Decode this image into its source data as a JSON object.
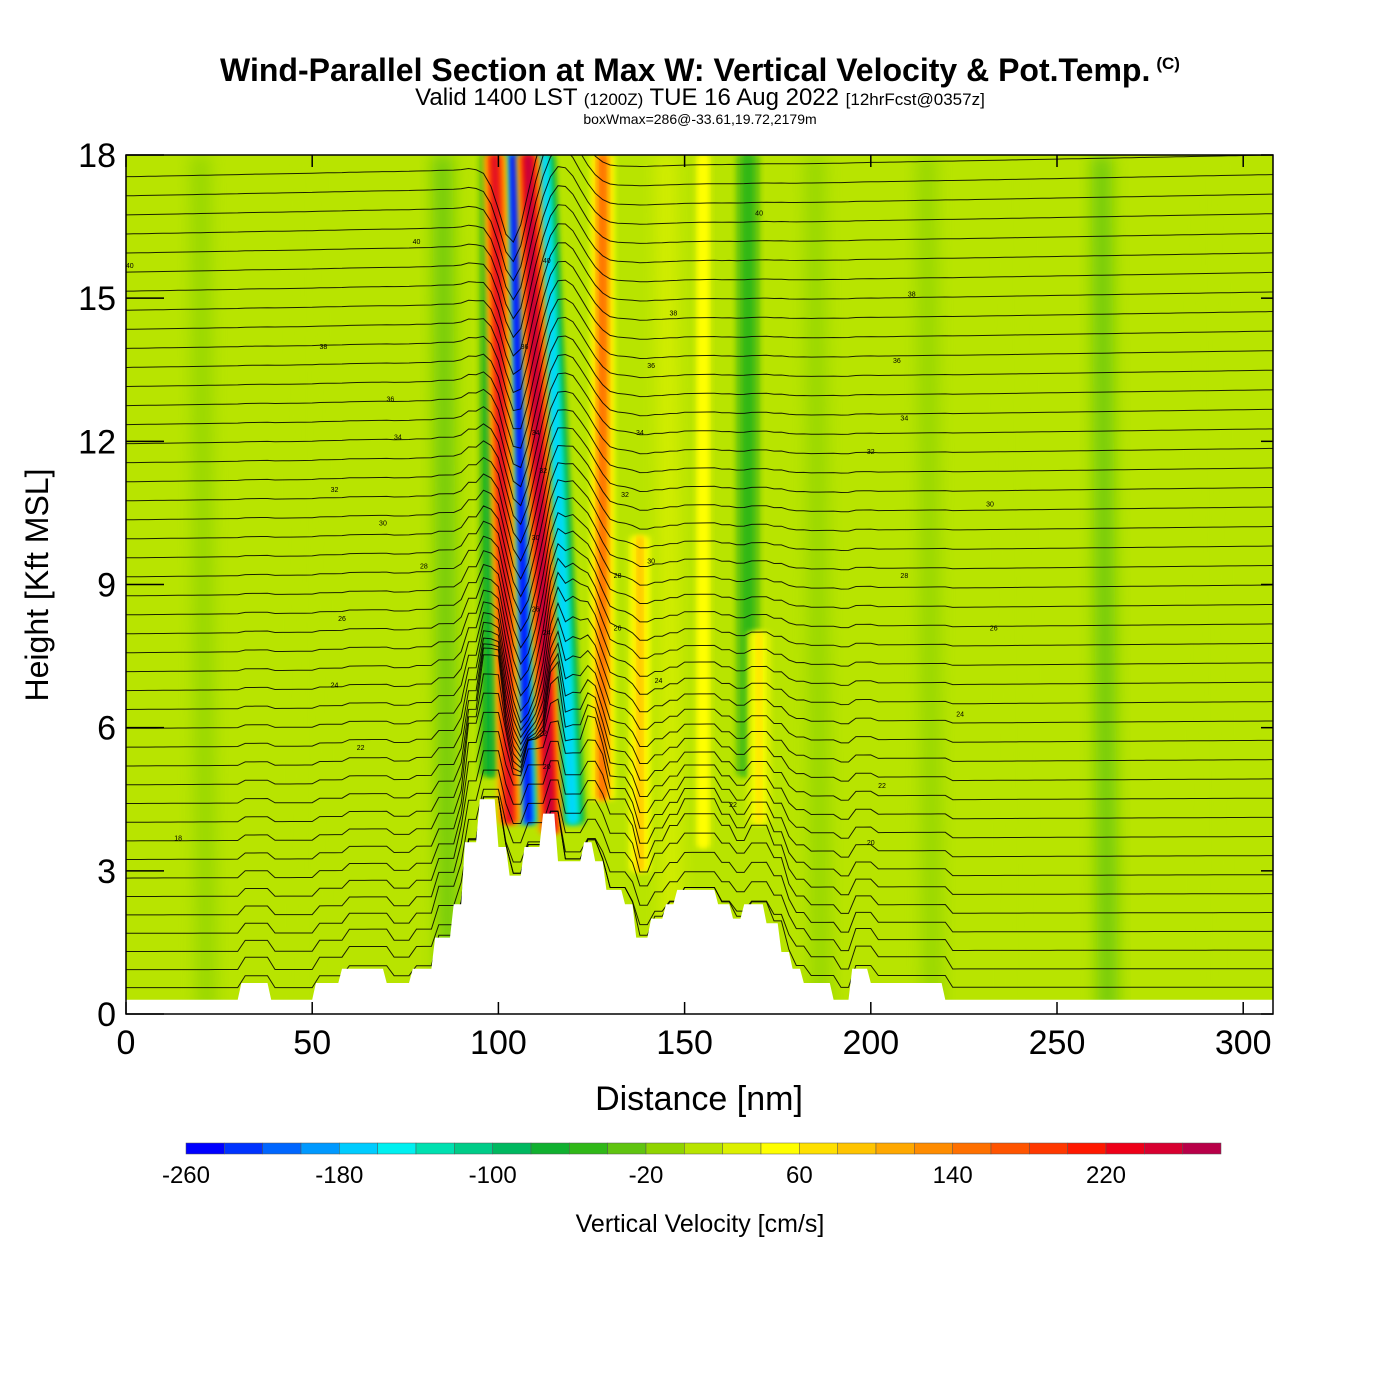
{
  "header": {
    "title": "Wind-Parallel Section at Max W: Vertical Velocity & Pot.Temp.",
    "title_tag": "(C)",
    "valid_prefix": "Valid 1400 LST",
    "valid_utc": "(1200Z)",
    "valid_date": "TUE 16 Aug 2022",
    "forecast": "[12hrFcst@0357z]",
    "subtitle": "boxWmax=286@-33.61,19.72,2179m"
  },
  "chart_data": {
    "type": "heatmap",
    "xlabel": "Distance [nm]",
    "ylabel": "Height [Kft MSL]",
    "xlim": [
      0,
      308
    ],
    "ylim": [
      0,
      18
    ],
    "x_ticks": [
      0,
      50,
      100,
      150,
      200,
      250,
      300
    ],
    "y_ticks": [
      0,
      3,
      6,
      9,
      12,
      15,
      18
    ],
    "grid": false,
    "field": "Vertical Velocity",
    "max_w": 286,
    "colorbar": {
      "label": "Vertical Velocity [cm/s]",
      "placement": "bottom",
      "tick_labels": [
        -260,
        -180,
        -100,
        -20,
        60,
        140,
        220
      ],
      "levels": [
        -260,
        -240,
        -220,
        -200,
        -180,
        -160,
        -140,
        -120,
        -100,
        -80,
        -60,
        -40,
        -20,
        0,
        20,
        40,
        60,
        80,
        100,
        120,
        140,
        160,
        180,
        200,
        220,
        240,
        260,
        280
      ],
      "colors": [
        "#0000ff",
        "#0033ff",
        "#0066ff",
        "#0099ff",
        "#00ccff",
        "#00f0f0",
        "#00e0b0",
        "#00cc88",
        "#00b860",
        "#10b030",
        "#30b818",
        "#60c410",
        "#90d400",
        "#b8e400",
        "#dcf000",
        "#ffff00",
        "#ffe000",
        "#ffc400",
        "#ffa800",
        "#ff8c00",
        "#ff7000",
        "#ff5400",
        "#ff3800",
        "#ff1800",
        "#ee0018",
        "#d80030",
        "#b80048"
      ]
    },
    "updraft_cores": [
      {
        "x": 103,
        "y_bottom": 4.0,
        "y_top": 18,
        "tilt_nm": 4,
        "w": 240
      },
      {
        "x": 114,
        "y_bottom": 3.8,
        "y_top": 18,
        "tilt_nm": 6,
        "w": 286
      },
      {
        "x": 128,
        "y_bottom": 4.5,
        "y_top": 18,
        "tilt_nm": 0,
        "w": 150
      },
      {
        "x": 138,
        "y_bottom": 3.0,
        "y_top": 10,
        "tilt_nm": 0,
        "w": 90
      },
      {
        "x": 155,
        "y_bottom": 3.5,
        "y_top": 18,
        "tilt_nm": 0,
        "w": 50
      },
      {
        "x": 170,
        "y_bottom": 4.0,
        "y_top": 8,
        "tilt_nm": 0,
        "w": 60
      }
    ],
    "downdraft_cores": [
      {
        "x": 108,
        "y_bottom": 4.0,
        "y_top": 18,
        "tilt_nm": 4,
        "w": -260
      },
      {
        "x": 120,
        "y_bottom": 4.0,
        "y_top": 18,
        "tilt_nm": 8,
        "w": -180
      },
      {
        "x": 98,
        "y_bottom": 5.0,
        "y_top": 18,
        "tilt_nm": 0,
        "w": -80
      },
      {
        "x": 167,
        "y_bottom": 5.0,
        "y_top": 18,
        "tilt_nm": 0,
        "w": -60
      }
    ],
    "terrain": {
      "x": [
        0,
        30,
        31,
        38,
        39,
        50,
        51,
        57,
        58,
        69,
        70,
        76,
        77,
        82,
        83,
        87,
        88,
        90,
        91,
        94,
        95,
        99,
        100,
        102,
        103,
        106,
        107,
        111,
        112,
        115,
        116,
        122,
        123,
        125,
        126,
        128,
        129,
        133,
        134,
        136,
        137,
        140,
        141,
        144,
        145,
        147,
        148,
        158,
        159,
        162,
        163,
        165,
        166,
        171,
        172,
        175,
        176,
        178,
        179,
        181,
        182,
        189,
        190,
        194,
        195,
        199,
        200,
        219,
        220,
        224,
        225,
        308
      ],
      "height": [
        0.3,
        0.3,
        0.65,
        0.65,
        0.3,
        0.3,
        0.65,
        0.65,
        0.95,
        0.95,
        0.65,
        0.65,
        0.95,
        0.95,
        1.6,
        1.6,
        2.3,
        2.3,
        3.6,
        3.6,
        4.5,
        4.5,
        3.5,
        3.5,
        2.9,
        2.9,
        3.5,
        3.5,
        4.2,
        4.2,
        3.2,
        3.2,
        3.6,
        3.6,
        3.2,
        3.2,
        2.6,
        2.6,
        2.3,
        2.3,
        1.6,
        1.6,
        2.0,
        2.0,
        2.3,
        2.3,
        2.6,
        2.6,
        2.3,
        2.3,
        2.0,
        2.0,
        2.3,
        2.3,
        1.9,
        1.9,
        1.3,
        1.3,
        0.95,
        0.95,
        0.65,
        0.65,
        0.3,
        0.3,
        0.95,
        0.95,
        0.65,
        0.65,
        0.3,
        0.3,
        0.3,
        0.3
      ]
    },
    "pot_temp_contours": {
      "interval": 2,
      "labels": [
        {
          "text": "40",
          "x": 1,
          "y": 15.7
        },
        {
          "text": "40",
          "x": 78,
          "y": 16.2
        },
        {
          "text": "40",
          "x": 113,
          "y": 15.8
        },
        {
          "text": "40",
          "x": 170,
          "y": 16.8
        },
        {
          "text": "38",
          "x": 53,
          "y": 14.0
        },
        {
          "text": "38",
          "x": 147,
          "y": 14.7
        },
        {
          "text": "38",
          "x": 211,
          "y": 15.1
        },
        {
          "text": "36",
          "x": 71,
          "y": 12.9
        },
        {
          "text": "36",
          "x": 107,
          "y": 14.0
        },
        {
          "text": "36",
          "x": 141,
          "y": 13.6
        },
        {
          "text": "36",
          "x": 207,
          "y": 13.7
        },
        {
          "text": "34",
          "x": 73,
          "y": 12.1
        },
        {
          "text": "34",
          "x": 110,
          "y": 12.2
        },
        {
          "text": "34",
          "x": 138,
          "y": 12.2
        },
        {
          "text": "34",
          "x": 209,
          "y": 12.5
        },
        {
          "text": "32",
          "x": 56,
          "y": 11.0
        },
        {
          "text": "32",
          "x": 112,
          "y": 11.4
        },
        {
          "text": "32",
          "x": 134,
          "y": 10.9
        },
        {
          "text": "32",
          "x": 200,
          "y": 11.8
        },
        {
          "text": "30",
          "x": 69,
          "y": 10.3
        },
        {
          "text": "30",
          "x": 110,
          "y": 10.0
        },
        {
          "text": "30",
          "x": 141,
          "y": 9.5
        },
        {
          "text": "30",
          "x": 232,
          "y": 10.7
        },
        {
          "text": "28",
          "x": 80,
          "y": 9.4
        },
        {
          "text": "28",
          "x": 132,
          "y": 9.2
        },
        {
          "text": "28",
          "x": 209,
          "y": 9.2
        },
        {
          "text": "26",
          "x": 58,
          "y": 8.3
        },
        {
          "text": "26",
          "x": 110,
          "y": 8.5
        },
        {
          "text": "26",
          "x": 132,
          "y": 8.1
        },
        {
          "text": "26",
          "x": 233,
          "y": 8.1
        },
        {
          "text": "24",
          "x": 56,
          "y": 6.9
        },
        {
          "text": "24",
          "x": 113,
          "y": 8.0
        },
        {
          "text": "24",
          "x": 143,
          "y": 7.0
        },
        {
          "text": "24",
          "x": 224,
          "y": 6.3
        },
        {
          "text": "22",
          "x": 63,
          "y": 5.6
        },
        {
          "text": "22",
          "x": 112,
          "y": 5.9
        },
        {
          "text": "22",
          "x": 163,
          "y": 4.4
        },
        {
          "text": "22",
          "x": 203,
          "y": 4.8
        },
        {
          "text": "20",
          "x": 113,
          "y": 5.2
        },
        {
          "text": "20",
          "x": 200,
          "y": 3.6
        },
        {
          "text": "18",
          "x": 14,
          "y": 3.7
        }
      ]
    }
  }
}
